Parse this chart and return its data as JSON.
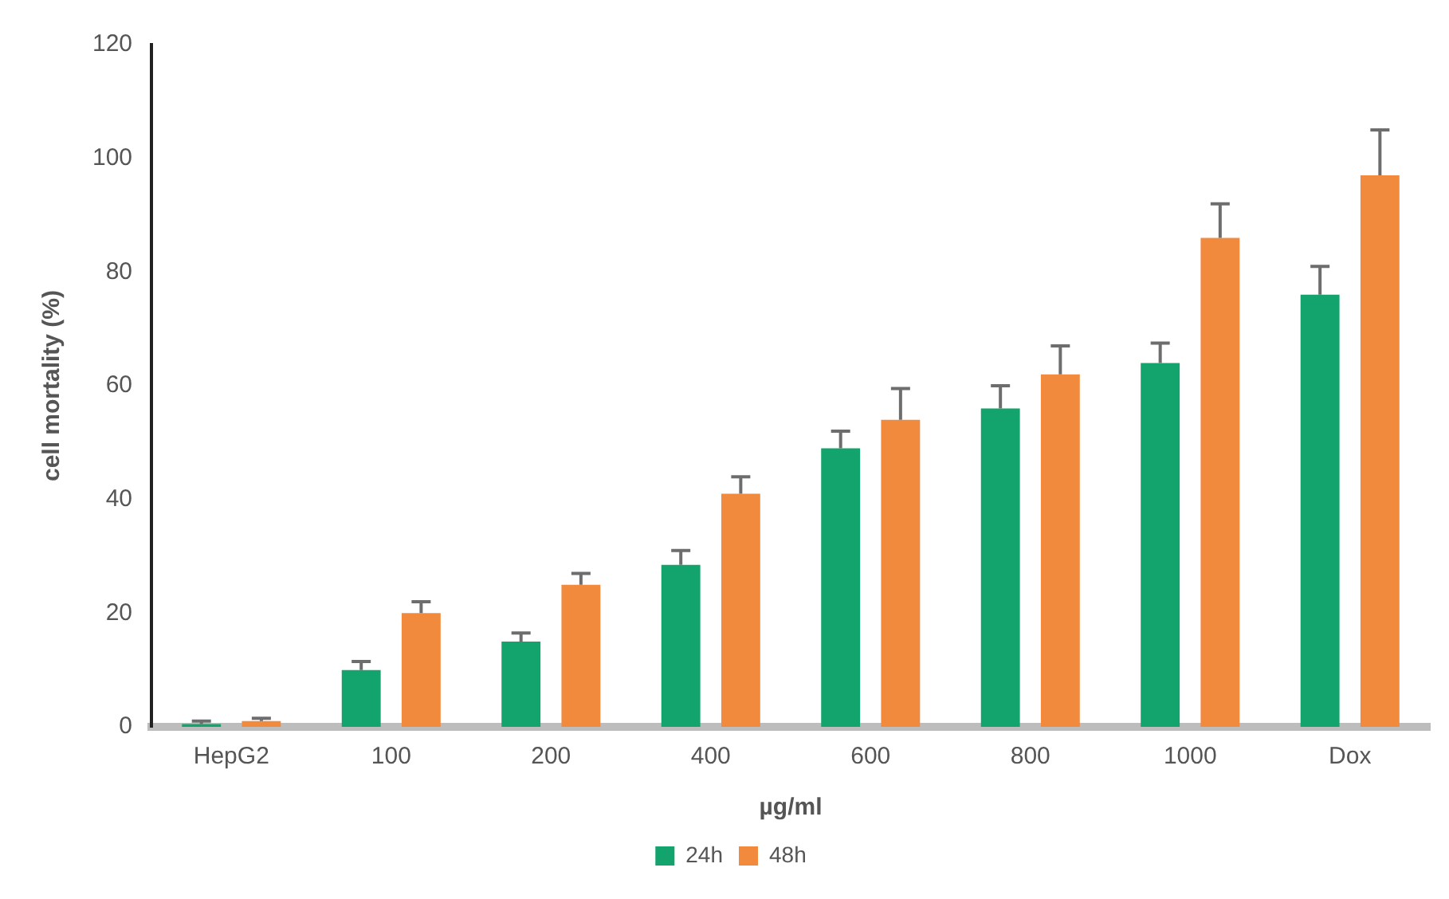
{
  "chart_data": {
    "type": "bar",
    "xlabel": "µg/ml",
    "ylabel": "cell mortality (%)",
    "categories": [
      "HepG2",
      "100",
      "200",
      "400",
      "600",
      "800",
      "1000",
      "Dox"
    ],
    "series": [
      {
        "name": "24h",
        "color": "#12a46c",
        "values": [
          0.5,
          10,
          15,
          28.5,
          49,
          56,
          64,
          76
        ],
        "errors": [
          [
            0.5,
            1
          ],
          [
            10,
            11.5
          ],
          [
            15,
            16.5
          ],
          [
            28.5,
            31
          ],
          [
            49,
            52
          ],
          [
            56,
            60
          ],
          [
            64,
            67.5
          ],
          [
            76,
            81
          ]
        ]
      },
      {
        "name": "48h",
        "color": "#f28a3e",
        "values": [
          1,
          20,
          25,
          41,
          54,
          62,
          86,
          97
        ],
        "errors": [
          [
            1,
            1.5
          ],
          [
            20,
            22
          ],
          [
            25,
            27
          ],
          [
            41,
            44
          ],
          [
            54,
            59.5
          ],
          [
            62,
            67
          ],
          [
            86,
            92
          ],
          [
            97,
            105
          ]
        ]
      }
    ],
    "ylim": [
      0,
      120
    ],
    "yticks": [
      0,
      20,
      40,
      60,
      80,
      100,
      120
    ],
    "grid": false,
    "legend": "bottom"
  }
}
